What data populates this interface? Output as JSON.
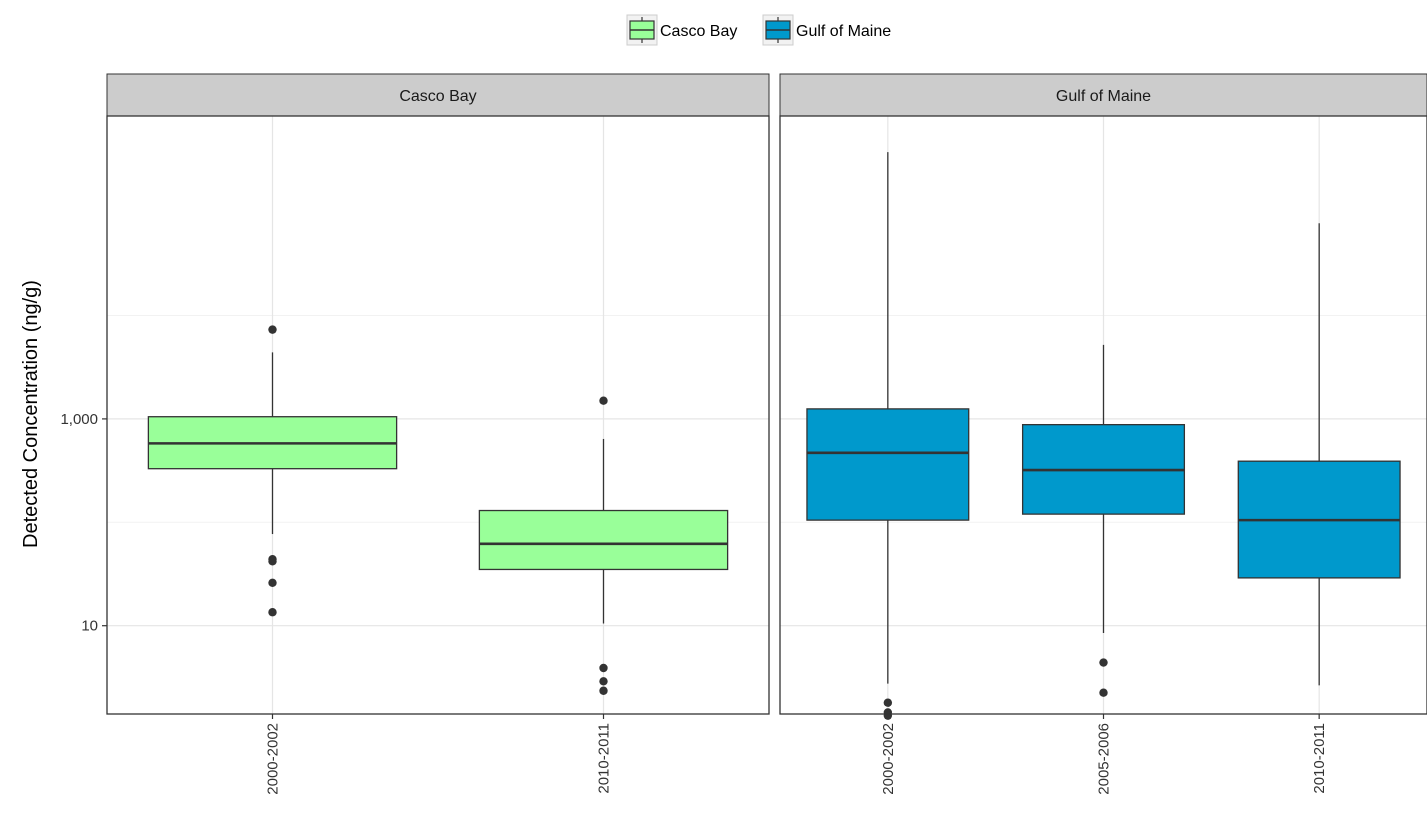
{
  "chart_data": {
    "type": "boxplot",
    "ylabel": "Detected Concentration (ng/g)",
    "y_scale": "log10",
    "ylim": [
      1.4,
      850000
    ],
    "y_ticks": [
      10,
      1000
    ],
    "y_tick_labels": [
      "10",
      "1,000"
    ],
    "legend": {
      "position": "top",
      "entries": [
        {
          "name": "Casco Bay",
          "color": "#99ff99"
        },
        {
          "name": "Gulf of Maine",
          "color": "#0099cc"
        }
      ]
    },
    "grid": true,
    "panels": [
      {
        "title": "Casco Bay",
        "fill": "#99ff99",
        "categories": [
          "2000-2002",
          "2010-2011"
        ],
        "boxes": [
          {
            "category": "2000-2002",
            "q1": 330,
            "median": 580,
            "q3": 1050,
            "whisker_low": 77,
            "whisker_high": 4400,
            "outliers": [
              7300,
              44,
              42,
              26,
              13.5
            ]
          },
          {
            "category": "2010-2011",
            "q1": 35,
            "median": 62,
            "q3": 130,
            "whisker_low": 10.5,
            "whisker_high": 640,
            "outliers": [
              1500,
              3.9,
              2.9,
              2.35
            ]
          }
        ]
      },
      {
        "title": "Gulf of Maine",
        "fill": "#0099cc",
        "categories": [
          "2000-2002",
          "2005-2006",
          "2010-2011"
        ],
        "boxes": [
          {
            "category": "2000-2002",
            "q1": 105,
            "median": 470,
            "q3": 1250,
            "whisker_low": 2.75,
            "whisker_high": 380000,
            "outliers": [
              1.8,
              1.45,
              1.35
            ]
          },
          {
            "category": "2005-2006",
            "q1": 120,
            "median": 320,
            "q3": 880,
            "whisker_low": 8.5,
            "whisker_high": 5200,
            "outliers": [
              4.4,
              2.25
            ]
          },
          {
            "category": "2010-2011",
            "q1": 29,
            "median": 105,
            "q3": 390,
            "whisker_low": 2.65,
            "whisker_high": 78000,
            "outliers": []
          }
        ]
      }
    ]
  }
}
